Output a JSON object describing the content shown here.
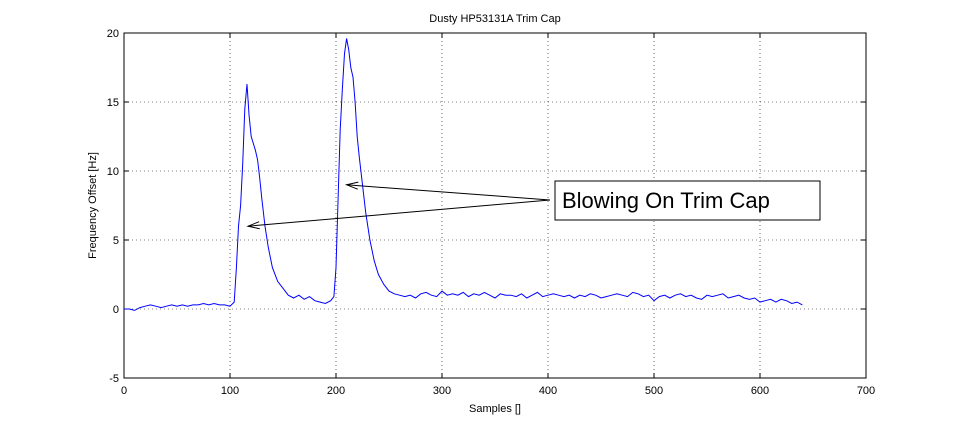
{
  "chart_data": {
    "type": "line",
    "title": "Dusty HP53131A Trim Cap",
    "xlabel": "Samples []",
    "ylabel": "Frequency Offset [Hz]",
    "xlim": [
      0,
      700
    ],
    "ylim": [
      -5,
      20
    ],
    "xticks": [
      0,
      100,
      200,
      300,
      400,
      500,
      600,
      700
    ],
    "yticks": [
      -5,
      0,
      5,
      10,
      15,
      20
    ],
    "grid": "dotted",
    "series": [
      {
        "color": "#0000ff",
        "x": [
          0,
          5,
          10,
          15,
          20,
          25,
          30,
          35,
          40,
          45,
          50,
          55,
          60,
          65,
          70,
          75,
          80,
          85,
          90,
          95,
          100,
          104,
          106,
          108,
          110,
          112,
          114,
          116,
          118,
          120,
          122,
          124,
          126,
          128,
          130,
          133,
          136,
          140,
          145,
          150,
          155,
          160,
          165,
          170,
          175,
          180,
          185,
          190,
          195,
          198,
          200,
          202,
          204,
          206,
          208,
          210,
          212,
          214,
          216,
          218,
          220,
          222,
          225,
          228,
          232,
          236,
          240,
          245,
          250,
          255,
          260,
          265,
          270,
          275,
          280,
          285,
          290,
          295,
          300,
          305,
          310,
          315,
          320,
          325,
          330,
          335,
          340,
          345,
          350,
          355,
          360,
          365,
          370,
          375,
          380,
          385,
          390,
          395,
          400,
          405,
          410,
          415,
          420,
          425,
          430,
          435,
          440,
          445,
          450,
          455,
          460,
          465,
          470,
          475,
          480,
          485,
          490,
          495,
          500,
          505,
          510,
          515,
          520,
          525,
          530,
          535,
          540,
          545,
          550,
          555,
          560,
          565,
          570,
          575,
          580,
          585,
          590,
          595,
          600,
          605,
          610,
          615,
          620,
          625,
          630,
          635,
          640
        ],
        "y": [
          0.0,
          0.0,
          -0.1,
          0.1,
          0.2,
          0.3,
          0.2,
          0.1,
          0.2,
          0.3,
          0.2,
          0.3,
          0.2,
          0.3,
          0.3,
          0.4,
          0.3,
          0.4,
          0.3,
          0.3,
          0.2,
          0.5,
          3.0,
          6.0,
          7.5,
          10.5,
          14.5,
          16.3,
          14.0,
          12.5,
          12.0,
          11.5,
          10.8,
          9.5,
          8.0,
          6.0,
          4.5,
          3.0,
          2.0,
          1.5,
          1.0,
          0.8,
          1.0,
          0.7,
          0.9,
          0.6,
          0.5,
          0.4,
          0.6,
          0.9,
          3.0,
          8.0,
          13.0,
          16.0,
          18.5,
          19.6,
          18.8,
          17.5,
          16.8,
          15.0,
          12.5,
          11.0,
          9.0,
          7.0,
          5.0,
          3.5,
          2.5,
          1.8,
          1.3,
          1.1,
          1.0,
          0.9,
          1.0,
          0.8,
          1.1,
          1.2,
          1.0,
          0.9,
          1.3,
          1.0,
          1.1,
          1.0,
          1.2,
          0.9,
          1.1,
          1.0,
          1.2,
          1.0,
          0.8,
          1.1,
          1.0,
          1.0,
          0.9,
          1.1,
          0.8,
          1.0,
          1.2,
          0.9,
          1.0,
          1.1,
          1.0,
          0.9,
          1.0,
          0.8,
          1.0,
          0.9,
          1.1,
          1.0,
          0.8,
          0.9,
          1.0,
          1.1,
          1.0,
          0.9,
          1.2,
          1.1,
          0.9,
          1.0,
          0.6,
          0.9,
          1.0,
          0.8,
          1.0,
          1.1,
          0.9,
          1.0,
          0.8,
          0.7,
          1.0,
          0.9,
          1.0,
          1.1,
          0.8,
          0.9,
          1.0,
          0.8,
          0.7,
          0.8,
          0.5,
          0.6,
          0.7,
          0.5,
          0.7,
          0.6,
          0.4,
          0.5,
          0.3
        ]
      }
    ],
    "annotation": {
      "text": "Blowing On Trim Cap",
      "arrow_targets": [
        {
          "x": 210,
          "y": 9
        },
        {
          "x": 117,
          "y": 6
        }
      ]
    }
  }
}
